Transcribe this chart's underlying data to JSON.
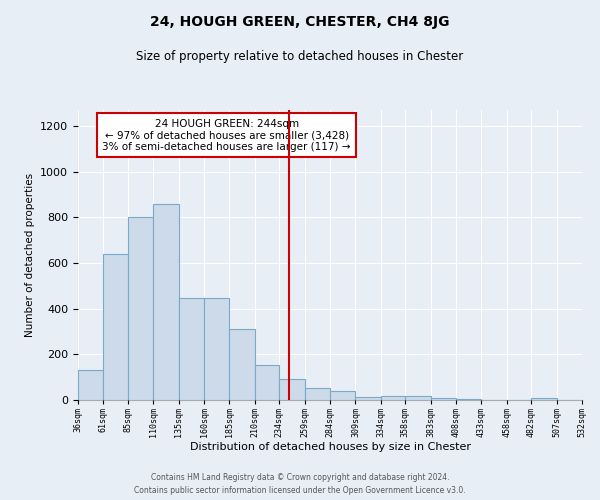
{
  "title": "24, HOUGH GREEN, CHESTER, CH4 8JG",
  "subtitle": "Size of property relative to detached houses in Chester",
  "xlabel": "Distribution of detached houses by size in Chester",
  "ylabel": "Number of detached properties",
  "bar_color": "#ccdaea",
  "bar_edge_color": "#7aaac8",
  "background_color": "#e8eef6",
  "grid_color": "#ffffff",
  "vline_x": 244,
  "vline_color": "#cc0000",
  "annotation_title": "24 HOUGH GREEN: 244sqm",
  "annotation_line1": "← 97% of detached houses are smaller (3,428)",
  "annotation_line2": "3% of semi-detached houses are larger (117) →",
  "bin_edges": [
    36,
    61,
    85,
    110,
    135,
    160,
    185,
    210,
    234,
    259,
    284,
    309,
    334,
    358,
    383,
    408,
    433,
    458,
    482,
    507,
    532
  ],
  "bin_heights": [
    130,
    640,
    800,
    860,
    445,
    445,
    310,
    155,
    90,
    52,
    38,
    12,
    18,
    18,
    8,
    4,
    2,
    0,
    8,
    0
  ],
  "ylim": [
    0,
    1270
  ],
  "xlim": [
    36,
    532
  ],
  "yticks": [
    0,
    200,
    400,
    600,
    800,
    1000,
    1200
  ],
  "footer_line1": "Contains HM Land Registry data © Crown copyright and database right 2024.",
  "footer_line2": "Contains public sector information licensed under the Open Government Licence v3.0."
}
